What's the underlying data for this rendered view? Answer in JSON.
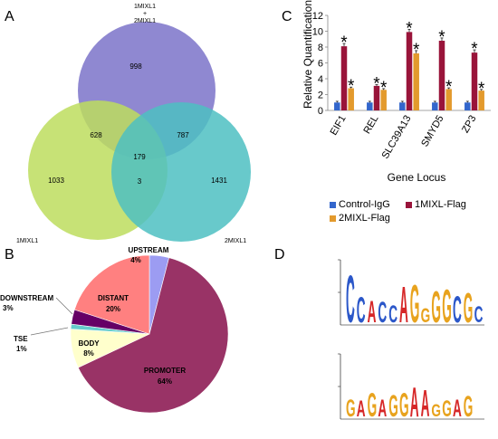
{
  "panels": {
    "a": "A",
    "b": "B",
    "c": "C",
    "d": "D"
  },
  "venn": {
    "set_top_label_line1": "1MIXL1",
    "set_top_label_line2": "+",
    "set_top_label_line3": "2MIXL1",
    "set_left_label": "1MIXL1",
    "set_right_label": "2MIXL1",
    "top_only": "998",
    "left_only": "1033",
    "right_only": "1431",
    "top_left": "628",
    "top_right": "787",
    "left_right": "3",
    "center": "179",
    "colors": {
      "top": "#7b73c9",
      "left": "#bddd5e",
      "right": "#4ec0c2"
    }
  },
  "pie": {
    "slices": [
      {
        "name": "UPSTREAM",
        "pct": "4%",
        "value": 4,
        "color": "#9c9cf2"
      },
      {
        "name": "PROMOTER",
        "pct": "64%",
        "value": 64,
        "color": "#993366"
      },
      {
        "name": "BODY",
        "pct": "8%",
        "value": 8,
        "color": "#ffffcc"
      },
      {
        "name": "TSE",
        "pct": "1%",
        "value": 1,
        "color": "#66cccc"
      },
      {
        "name": "DOWNSTREAM",
        "pct": "3%",
        "value": 3,
        "color": "#660066"
      },
      {
        "name": "DISTANT",
        "pct": "20%",
        "value": 20,
        "color": "#ff8080"
      }
    ]
  },
  "chart_data": {
    "type": "bar",
    "categories": [
      "EIF1",
      "REL",
      "SLC39A13",
      "SMYD5",
      "ZP3"
    ],
    "series": [
      {
        "name": "Control-IgG",
        "values": [
          1,
          1,
          1,
          1,
          1
        ],
        "color": "#3366cc"
      },
      {
        "name": "1MIXL-Flag",
        "values": [
          8.1,
          3.1,
          9.9,
          8.8,
          7.3
        ],
        "color": "#99143a"
      },
      {
        "name": "2MIXL-Flag",
        "values": [
          2.8,
          2.6,
          7.2,
          2.7,
          2.5
        ],
        "color": "#e39a2d"
      }
    ],
    "significance_marker": "*",
    "xlabel": "Gene Locus",
    "ylabel": "Relative Quantification",
    "yticks": [
      "0",
      "2",
      "4",
      "6",
      "8",
      "10",
      "12"
    ],
    "ylim": [
      0,
      12
    ],
    "grid": false,
    "legend": "bottom"
  },
  "motifs": [
    {
      "letters": [
        "C",
        "C",
        "A",
        "C",
        "C",
        "A",
        "G",
        "G",
        "G",
        "G",
        "C",
        "G",
        "C"
      ]
    },
    {
      "letters": [
        "G",
        "A",
        "G",
        "A",
        "G",
        "G",
        "A",
        "A",
        "G",
        "G",
        "A",
        "G"
      ]
    }
  ]
}
